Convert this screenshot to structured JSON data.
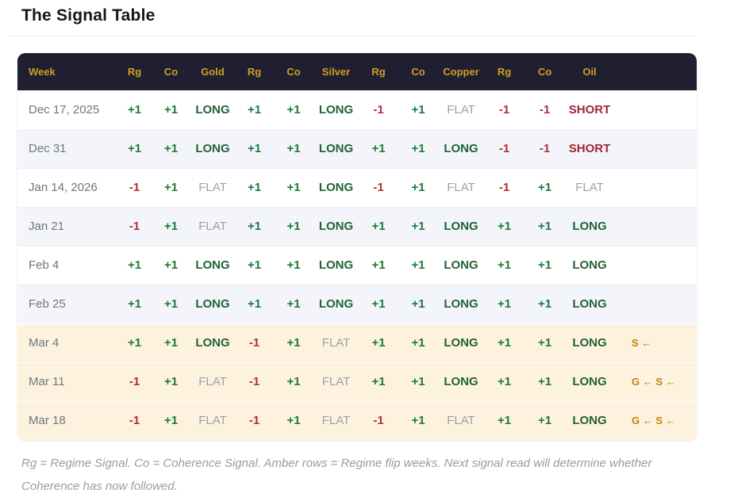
{
  "page": {
    "title": "The Signal Table"
  },
  "table": {
    "headers": [
      "Week",
      "Rg",
      "Co",
      "Gold",
      "Rg",
      "Co",
      "Silver",
      "Rg",
      "Co",
      "Copper",
      "Rg",
      "Co",
      "Oil",
      ""
    ],
    "rows": [
      {
        "week": "Dec 17, 2025",
        "amber": false,
        "cells": [
          {
            "rg": "+1",
            "co": "+1",
            "signal": "LONG"
          },
          {
            "rg": "+1",
            "co": "+1",
            "signal": "LONG"
          },
          {
            "rg": "-1",
            "co": "+1",
            "signal": "FLAT"
          },
          {
            "rg": "-1",
            "co": "-1",
            "signal": "SHORT"
          }
        ],
        "note": ""
      },
      {
        "week": "Dec 31",
        "amber": false,
        "cells": [
          {
            "rg": "+1",
            "co": "+1",
            "signal": "LONG"
          },
          {
            "rg": "+1",
            "co": "+1",
            "signal": "LONG"
          },
          {
            "rg": "+1",
            "co": "+1",
            "signal": "LONG"
          },
          {
            "rg": "-1",
            "co": "-1",
            "signal": "SHORT"
          }
        ],
        "note": ""
      },
      {
        "week": "Jan 14, 2026",
        "amber": false,
        "cells": [
          {
            "rg": "-1",
            "co": "+1",
            "signal": "FLAT"
          },
          {
            "rg": "+1",
            "co": "+1",
            "signal": "LONG"
          },
          {
            "rg": "-1",
            "co": "+1",
            "signal": "FLAT"
          },
          {
            "rg": "-1",
            "co": "+1",
            "signal": "FLAT"
          }
        ],
        "note": ""
      },
      {
        "week": "Jan 21",
        "amber": false,
        "cells": [
          {
            "rg": "-1",
            "co": "+1",
            "signal": "FLAT"
          },
          {
            "rg": "+1",
            "co": "+1",
            "signal": "LONG"
          },
          {
            "rg": "+1",
            "co": "+1",
            "signal": "LONG"
          },
          {
            "rg": "+1",
            "co": "+1",
            "signal": "LONG"
          }
        ],
        "note": ""
      },
      {
        "week": "Feb 4",
        "amber": false,
        "cells": [
          {
            "rg": "+1",
            "co": "+1",
            "signal": "LONG"
          },
          {
            "rg": "+1",
            "co": "+1",
            "signal": "LONG"
          },
          {
            "rg": "+1",
            "co": "+1",
            "signal": "LONG"
          },
          {
            "rg": "+1",
            "co": "+1",
            "signal": "LONG"
          }
        ],
        "note": ""
      },
      {
        "week": "Feb 25",
        "amber": false,
        "cells": [
          {
            "rg": "+1",
            "co": "+1",
            "signal": "LONG"
          },
          {
            "rg": "+1",
            "co": "+1",
            "signal": "LONG"
          },
          {
            "rg": "+1",
            "co": "+1",
            "signal": "LONG"
          },
          {
            "rg": "+1",
            "co": "+1",
            "signal": "LONG"
          }
        ],
        "note": ""
      },
      {
        "week": "Mar 4",
        "amber": true,
        "cells": [
          {
            "rg": "+1",
            "co": "+1",
            "signal": "LONG"
          },
          {
            "rg": "-1",
            "co": "+1",
            "signal": "FLAT"
          },
          {
            "rg": "+1",
            "co": "+1",
            "signal": "LONG"
          },
          {
            "rg": "+1",
            "co": "+1",
            "signal": "LONG"
          }
        ],
        "note": "S ←"
      },
      {
        "week": "Mar 11",
        "amber": true,
        "cells": [
          {
            "rg": "-1",
            "co": "+1",
            "signal": "FLAT"
          },
          {
            "rg": "-1",
            "co": "+1",
            "signal": "FLAT"
          },
          {
            "rg": "+1",
            "co": "+1",
            "signal": "LONG"
          },
          {
            "rg": "+1",
            "co": "+1",
            "signal": "LONG"
          }
        ],
        "note": "G ← S ←"
      },
      {
        "week": "Mar 18",
        "amber": true,
        "cells": [
          {
            "rg": "-1",
            "co": "+1",
            "signal": "FLAT"
          },
          {
            "rg": "-1",
            "co": "+1",
            "signal": "FLAT"
          },
          {
            "rg": "-1",
            "co": "+1",
            "signal": "FLAT"
          },
          {
            "rg": "+1",
            "co": "+1",
            "signal": "LONG"
          }
        ],
        "note": "G ← S ←"
      }
    ],
    "footnote": "Rg = Regime Signal. Co = Coherence Signal. Amber rows = Regime flip weeks. Next signal read will determine whether Coherence has now followed."
  },
  "colors": {
    "header_bg": "#201f31",
    "header_text": "#d09e23",
    "positive": "#1b7a38",
    "negative": "#ae3036",
    "long": "#206336",
    "short": "#9d2733",
    "flat": "#9aa0aa",
    "alt_row": "#f4f5fa",
    "amber_row": "#fdf2de",
    "note_text": "#b8860b"
  }
}
